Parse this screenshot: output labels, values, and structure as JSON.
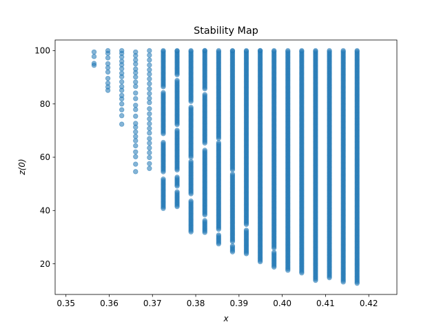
{
  "chart_data": {
    "type": "scatter",
    "title": "Stability Map",
    "xlabel": "x",
    "ylabel": "z(0)",
    "xlim": [
      0.3475,
      0.4265
    ],
    "ylim": [
      8.5,
      104.0
    ],
    "xticks": [
      "0.35",
      "0.36",
      "0.37",
      "0.38",
      "0.39",
      "0.40",
      "0.41",
      "0.42"
    ],
    "yticks": [
      "20",
      "40",
      "60",
      "80",
      "100"
    ],
    "grid": false,
    "marker_color": "#1f77b4",
    "marker_alpha": 0.55,
    "columns": [
      {
        "x": 0.3565,
        "z_values": [
          94.5,
          95.2,
          97.8,
          99.5
        ]
      },
      {
        "x": 0.3597,
        "z_values": [
          85.1,
          86.4,
          87.8,
          89.6,
          92.0,
          93.6,
          95.1,
          97.3,
          99.0,
          100.0
        ]
      },
      {
        "x": 0.3629,
        "z_values": [
          72.4,
          75.6,
          77.8,
          80.0,
          81.9,
          83.2,
          85.1,
          86.5,
          88.3,
          90.2,
          91.5,
          93.2,
          94.7,
          96.0,
          97.6,
          99.0,
          100.0
        ]
      },
      {
        "x": 0.3661,
        "z_values": [
          54.6,
          57.4,
          60.2,
          62.0,
          64.3,
          66.2,
          67.8,
          69.5,
          71.3,
          72.7,
          75.4,
          77.9,
          79.5,
          82.0,
          84.1,
          86.6,
          88.2,
          90.1,
          91.7,
          93.1,
          95.0,
          96.5,
          98.1,
          99.5
        ]
      },
      {
        "x": 0.3693,
        "z_values": [
          55.8,
          57.6,
          59.9,
          61.7,
          63.5,
          65.3,
          67.0,
          69.1,
          70.8,
          72.6,
          74.4,
          76.3,
          78.2,
          80.5,
          82.1,
          83.9,
          85.7,
          87.6,
          89.4,
          91.2,
          92.8,
          94.6,
          96.5,
          98.3,
          100.0
        ]
      }
    ],
    "column_ranges": [
      {
        "x": 0.3725,
        "z_min": 40.8,
        "z_max": 100.0,
        "gaps": [
          [
            52.0,
            54.0
          ],
          [
            66.0,
            68.5
          ],
          [
            84.5,
            86.0
          ]
        ]
      },
      {
        "x": 0.3757,
        "z_min": 41.5,
        "z_max": 100.0,
        "gaps": [
          [
            47.0,
            49.0
          ],
          [
            53.0,
            55.0
          ],
          [
            70.5,
            72.0
          ],
          [
            89.0,
            90.5
          ]
        ]
      },
      {
        "x": 0.3789,
        "z_min": 32.0,
        "z_max": 100.0,
        "gaps": [
          [
            44.0,
            46.0
          ],
          [
            58.5,
            60.0
          ],
          [
            79.0,
            80.5
          ]
        ]
      },
      {
        "x": 0.3821,
        "z_min": 31.8,
        "z_max": 100.0,
        "gaps": [
          [
            36.5,
            38.0
          ],
          [
            63.0,
            65.0
          ],
          [
            84.0,
            85.5
          ]
        ]
      },
      {
        "x": 0.3853,
        "z_min": 27.5,
        "z_max": 100.0,
        "gaps": [
          [
            31.0,
            32.5
          ],
          [
            65.5,
            67.0
          ]
        ]
      },
      {
        "x": 0.3885,
        "z_min": 24.5,
        "z_max": 100.0,
        "gaps": [
          [
            27.0,
            28.0
          ],
          [
            54.0,
            55.0
          ]
        ]
      },
      {
        "x": 0.3917,
        "z_min": 23.8,
        "z_max": 100.0,
        "gaps": [
          [
            33.0,
            34.5
          ]
        ]
      },
      {
        "x": 0.3949,
        "z_min": 20.8,
        "z_max": 100.0,
        "gaps": []
      },
      {
        "x": 0.3981,
        "z_min": 18.8,
        "z_max": 100.0,
        "gaps": [
          [
            24.5,
            25.5
          ]
        ]
      },
      {
        "x": 0.4013,
        "z_min": 17.6,
        "z_max": 100.0,
        "gaps": []
      },
      {
        "x": 0.4045,
        "z_min": 16.6,
        "z_max": 100.0,
        "gaps": []
      },
      {
        "x": 0.4077,
        "z_min": 13.8,
        "z_max": 100.0,
        "gaps": []
      },
      {
        "x": 0.4109,
        "z_min": 14.8,
        "z_max": 100.0,
        "gaps": []
      },
      {
        "x": 0.4141,
        "z_min": 13.2,
        "z_max": 100.0,
        "gaps": []
      },
      {
        "x": 0.4173,
        "z_min": 12.7,
        "z_max": 100.0,
        "gaps": []
      }
    ]
  }
}
